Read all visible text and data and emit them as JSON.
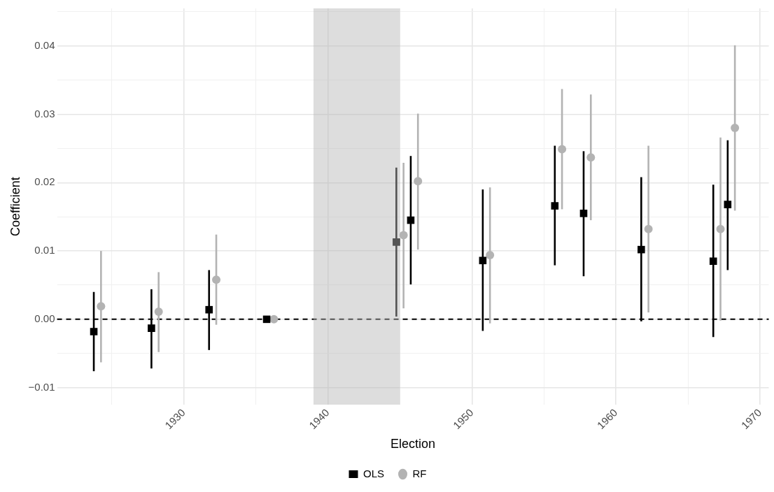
{
  "chart_data": {
    "type": "scatter",
    "xlabel": "Election",
    "ylabel": "Coefficient",
    "xlim": [
      1921.2,
      1970.6
    ],
    "ylim": [
      -0.0125,
      0.0455
    ],
    "xticks": [
      {
        "value": 1925,
        "label": null
      },
      1930,
      {
        "value": 1935,
        "label": null
      },
      1940,
      {
        "value": 1945,
        "label": null
      },
      1950,
      {
        "value": 1955,
        "label": null
      },
      1960,
      {
        "value": 1965,
        "label": null
      },
      1970
    ],
    "yticks": [
      {
        "value": -0.01,
        "label": "−0.01"
      },
      {
        "value": -0.005,
        "label": null
      },
      {
        "value": 0,
        "label": "0.00"
      },
      {
        "value": 0.005,
        "label": null
      },
      {
        "value": 0.01,
        "label": "0.01"
      },
      {
        "value": 0.015,
        "label": null
      },
      {
        "value": 0.02,
        "label": "0.02"
      },
      {
        "value": 0.025,
        "label": null
      },
      {
        "value": 0.03,
        "label": "0.03"
      },
      {
        "value": 0.035,
        "label": null
      },
      {
        "value": 0.04,
        "label": "0.04"
      },
      {
        "value": 0.045,
        "label": null
      }
    ],
    "grid": true,
    "legend": "bottom",
    "series": [
      {
        "name": "OLS",
        "color": "#000000",
        "marker": "square",
        "x": [
          1923.75,
          1927.75,
          1931.75,
          1935.75,
          1944.75,
          1945.75,
          1950.75,
          1955.75,
          1957.75,
          1961.75,
          1966.75,
          1967.75
        ],
        "values": [
          -0.0018,
          -0.0013,
          0.0014,
          0,
          0.0113,
          0.0145,
          0.0086,
          0.0166,
          0.0155,
          0.0102,
          0.0085,
          0.0168
        ],
        "errors": [
          [
            -0.0076,
            0.004
          ],
          [
            -0.0072,
            0.0044
          ],
          [
            -0.0045,
            0.0072
          ],
          null,
          [
            0.0004,
            0.0222
          ],
          [
            0.0051,
            0.0239
          ],
          [
            -0.0017,
            0.019
          ],
          [
            0.0079,
            0.0254
          ],
          [
            0.0063,
            0.0246
          ],
          [
            -0.0003,
            0.0208
          ],
          [
            -0.0026,
            0.0197
          ],
          [
            0.0072,
            0.0262
          ]
        ]
      },
      {
        "name": "RF",
        "color": "#b3b3b3",
        "marker": "circle",
        "x": [
          1924.25,
          1928.25,
          1932.25,
          1936.25,
          1945.25,
          1946.25,
          1951.25,
          1956.25,
          1958.25,
          1962.25,
          1967.25,
          1968.25
        ],
        "values": [
          0.0019,
          0.0011,
          0.0058,
          0,
          0.0123,
          0.0202,
          0.0094,
          0.0249,
          0.0237,
          0.0132,
          0.0132,
          0.028
        ],
        "errors": [
          [
            -0.0063,
            0.01
          ],
          [
            -0.0048,
            0.0069
          ],
          [
            -0.0008,
            0.0124
          ],
          null,
          [
            0.0016,
            0.0229
          ],
          [
            0.0102,
            0.0301
          ],
          [
            -0.0006,
            0.0193
          ],
          [
            0.0161,
            0.0337
          ],
          [
            0.0145,
            0.0329
          ],
          [
            0.001,
            0.0254
          ],
          [
            -0.0002,
            0.0266
          ],
          [
            0.0159,
            0.0401
          ]
        ]
      }
    ],
    "ref_lines": [
      {
        "axis": "y",
        "value": 0,
        "color": "#000000",
        "line_style": "dashed"
      }
    ],
    "bands": [
      {
        "axis": "x",
        "from": 1939,
        "to": 1945,
        "color": "#b5b5b5"
      }
    ]
  }
}
